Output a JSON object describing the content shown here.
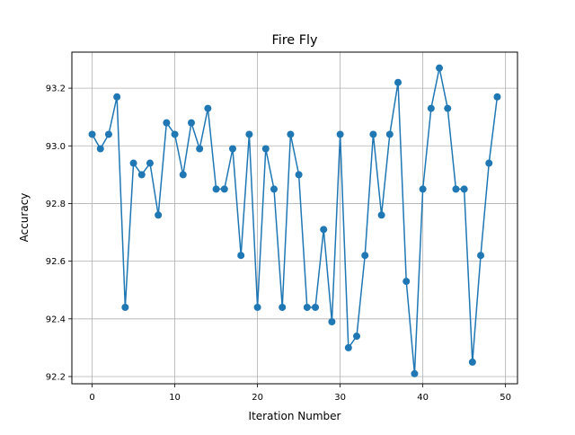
{
  "chart_data": {
    "type": "line",
    "title": "Fire Fly",
    "xlabel": "Iteration Number",
    "ylabel": "Accuracy",
    "xlim": [
      -2.45,
      51.45
    ],
    "ylim": [
      92.175,
      93.325
    ],
    "xticks": [
      0,
      10,
      20,
      30,
      40,
      50
    ],
    "yticks": [
      92.2,
      92.4,
      92.6,
      92.8,
      93.0,
      93.2
    ],
    "ytick_labels": [
      "92.2",
      "92.4",
      "92.6",
      "92.8",
      "93.0",
      "93.2"
    ],
    "grid": true,
    "color": "#1f77b4",
    "marker": "circle",
    "series": [
      {
        "x": [
          0,
          1,
          2,
          3,
          4,
          5,
          6,
          7,
          8,
          9,
          10,
          11,
          12,
          13,
          14,
          15,
          16,
          17,
          18,
          19,
          20,
          21,
          22,
          23,
          24,
          25,
          26,
          27,
          28,
          29,
          30,
          31,
          32,
          33,
          34,
          35,
          36,
          37,
          38,
          39,
          40,
          41,
          42,
          43,
          44,
          45,
          46,
          47,
          48,
          49
        ],
        "values": [
          93.04,
          92.99,
          93.04,
          93.17,
          92.44,
          92.94,
          92.9,
          92.94,
          92.76,
          93.08,
          93.04,
          92.9,
          93.08,
          92.99,
          93.13,
          92.85,
          92.85,
          92.99,
          92.62,
          93.04,
          92.44,
          92.99,
          92.85,
          92.44,
          93.04,
          92.9,
          92.44,
          92.44,
          92.71,
          92.39,
          93.04,
          92.3,
          92.34,
          92.62,
          93.04,
          92.76,
          93.04,
          93.22,
          92.53,
          92.21,
          92.85,
          93.13,
          93.27,
          93.13,
          92.85,
          92.85,
          92.25,
          92.62,
          92.94,
          93.17
        ]
      }
    ]
  }
}
